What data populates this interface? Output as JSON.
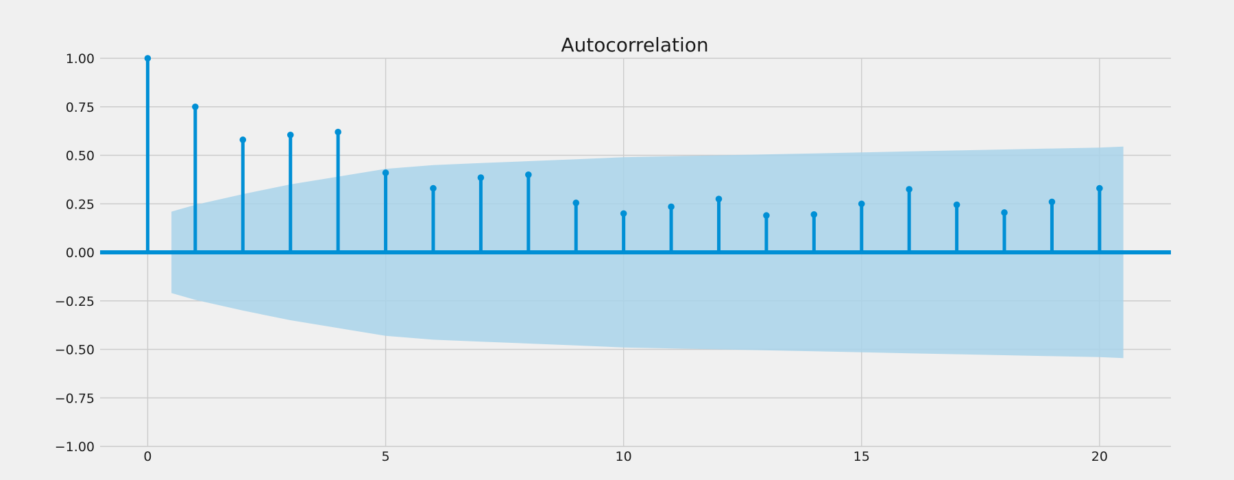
{
  "chart_data": {
    "type": "stem",
    "title": "Autocorrelation",
    "xlabel": "",
    "ylabel": "",
    "xlim": [
      -1,
      21.5
    ],
    "ylim": [
      -1.0,
      1.0
    ],
    "grid": true,
    "x_ticks": [
      0,
      5,
      10,
      15,
      20
    ],
    "x_tick_labels": [
      "0",
      "5",
      "10",
      "15",
      "20"
    ],
    "y_ticks": [
      1.0,
      0.75,
      0.5,
      0.25,
      0.0,
      -0.25,
      -0.5,
      -0.75,
      -1.0
    ],
    "y_tick_labels": [
      "1.00",
      "0.75",
      "0.50",
      "0.25",
      "0.00",
      "−0.25",
      "−0.50",
      "−0.75",
      "−1.00"
    ],
    "lags": [
      0,
      1,
      2,
      3,
      4,
      5,
      6,
      7,
      8,
      9,
      10,
      11,
      12,
      13,
      14,
      15,
      16,
      17,
      18,
      19,
      20
    ],
    "acf": [
      1.0,
      0.75,
      0.58,
      0.605,
      0.62,
      0.41,
      0.33,
      0.385,
      0.4,
      0.255,
      0.2,
      0.235,
      0.275,
      0.19,
      0.195,
      0.25,
      0.325,
      0.245,
      0.205,
      0.26,
      0.33
    ],
    "confidence_band": {
      "x": [
        0.5,
        1,
        2,
        3,
        4,
        5,
        6,
        7,
        8,
        9,
        10,
        11,
        12,
        13,
        14,
        15,
        16,
        17,
        18,
        19,
        20,
        20.5
      ],
      "upper": [
        0.21,
        0.245,
        0.3,
        0.35,
        0.39,
        0.43,
        0.45,
        0.46,
        0.47,
        0.48,
        0.49,
        0.495,
        0.5,
        0.505,
        0.51,
        0.515,
        0.52,
        0.525,
        0.53,
        0.535,
        0.54,
        0.545
      ],
      "lower": [
        -0.21,
        -0.245,
        -0.3,
        -0.35,
        -0.39,
        -0.43,
        -0.45,
        -0.46,
        -0.47,
        -0.48,
        -0.49,
        -0.495,
        -0.5,
        -0.505,
        -0.51,
        -0.515,
        -0.52,
        -0.525,
        -0.53,
        -0.535,
        -0.54,
        -0.545
      ]
    },
    "colors": {
      "background": "#f0f0f0",
      "stem": "#008fd5",
      "band": "#a9d3ea",
      "grid": "#cbcbcb",
      "text": "#1a1a1a"
    }
  }
}
